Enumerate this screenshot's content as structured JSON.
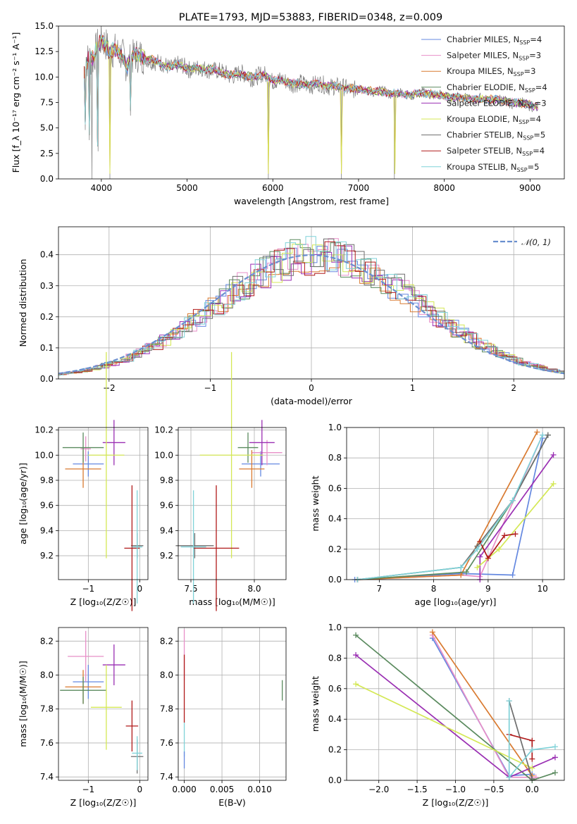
{
  "colors": {
    "chabrier_miles": "#6488e0",
    "salpeter_miles": "#e88fc8",
    "kroupa_miles": "#d97a30",
    "chabrier_elodie": "#5a8a5e",
    "salpeter_elodie": "#9a2fb3",
    "kroupa_elodie": "#d4e855",
    "chabrier_stelib": "#6e6e6e",
    "salpeter_stelib": "#b01a1a",
    "kroupa_stelib": "#7fd2d8",
    "gaussian": "#6a8fcf"
  },
  "chart_data": [
    {
      "id": "spectrum",
      "type": "line",
      "title": "PLATE=1793, MJD=53883, FIBERID=0348, z=0.009",
      "xlabel": "wavelength [Angstrom, rest frame]",
      "ylabel": "Flux [f_λ 10⁻¹⁷ erg cm⁻² s⁻¹ A⁻¹]",
      "xlim": [
        3500,
        9400
      ],
      "ylim": [
        0,
        15
      ],
      "xticks": [
        4000,
        5000,
        6000,
        7000,
        8000,
        9000
      ],
      "yticks": [
        0.0,
        2.5,
        5.0,
        7.5,
        10.0,
        12.5,
        15.0
      ],
      "legend_position": "top-right",
      "legend": [
        {
          "label": "Chabrier MILES, N",
          "sub": "SSP",
          "tail": "=4",
          "color_key": "chabrier_miles"
        },
        {
          "label": "Salpeter MILES, N",
          "sub": "SSP",
          "tail": "=3",
          "color_key": "salpeter_miles"
        },
        {
          "label": "Kroupa MILES, N",
          "sub": "SSP",
          "tail": "=3",
          "color_key": "kroupa_miles"
        },
        {
          "label": "Chabrier ELODIE, N",
          "sub": "SSP",
          "tail": "=4",
          "color_key": "chabrier_elodie"
        },
        {
          "label": "Salpeter ELODIE, N",
          "sub": "SSP",
          "tail": "=3",
          "color_key": "salpeter_elodie"
        },
        {
          "label": "Kroupa ELODIE, N",
          "sub": "SSP",
          "tail": "=4",
          "color_key": "kroupa_elodie"
        },
        {
          "label": "Chabrier STELIB, N",
          "sub": "SSP",
          "tail": "=5",
          "color_key": "chabrier_stelib"
        },
        {
          "label": "Salpeter STELIB, N",
          "sub": "SSP",
          "tail": "=4",
          "color_key": "salpeter_stelib"
        },
        {
          "label": "Kroupa STELIB, N",
          "sub": "SSP",
          "tail": "=5",
          "color_key": "kroupa_stelib"
        }
      ],
      "data_series": {
        "x": [
          3800,
          3850,
          3900,
          3950,
          4000,
          4050,
          4100,
          4150,
          4200,
          4250,
          4300,
          4350,
          4400,
          4450,
          4500,
          4600,
          4700,
          4800,
          4900,
          5000,
          5100,
          5200,
          5300,
          5400,
          5500,
          5600,
          5700,
          5800,
          5900,
          6000,
          6100,
          6200,
          6300,
          6400,
          6500,
          6600,
          6700,
          6800,
          6900,
          7000,
          7200,
          7400,
          7600,
          7800,
          8000,
          8200,
          8400,
          8600,
          8800,
          9000,
          9100
        ],
        "y": [
          10.5,
          12.0,
          11.8,
          13.0,
          13.5,
          13.2,
          12.5,
          12.8,
          12.3,
          11.9,
          11.0,
          12.0,
          12.2,
          12.0,
          11.8,
          11.7,
          11.2,
          11.0,
          11.2,
          10.8,
          10.9,
          10.7,
          10.8,
          10.4,
          10.2,
          10.3,
          10.1,
          10.0,
          10.2,
          9.7,
          9.6,
          9.5,
          9.3,
          9.2,
          9.4,
          9.1,
          9.2,
          8.9,
          8.9,
          8.8,
          8.6,
          8.4,
          8.3,
          8.4,
          8.1,
          8.0,
          7.8,
          7.8,
          7.5,
          7.3,
          7.0
        ]
      },
      "absorption_dips": [
        {
          "x": 3810,
          "y": 4.8
        },
        {
          "x": 3860,
          "y": 3.8
        },
        {
          "x": 3890,
          "y": 0.0
        },
        {
          "x": 3960,
          "y": 2.7
        },
        {
          "x": 4102,
          "y": 0.0
        },
        {
          "x": 4340,
          "y": 6.2
        },
        {
          "x": 5950,
          "y": 0.0
        },
        {
          "x": 6800,
          "y": 0.0
        },
        {
          "x": 7420,
          "y": 0.0
        }
      ]
    },
    {
      "id": "residuals",
      "type": "line",
      "xlabel": "(data-model)/error",
      "ylabel": "Normed distribution",
      "xlim": [
        -2.5,
        2.5
      ],
      "ylim": [
        0,
        0.49
      ],
      "xticks": [
        -2,
        -1,
        0,
        1,
        2
      ],
      "yticks": [
        0.0,
        0.1,
        0.2,
        0.3,
        0.4
      ],
      "legend_position": "top-right",
      "legend": [
        {
          "label": "𝒩(0, 1)",
          "color_key": "gaussian"
        }
      ],
      "gaussian": {
        "mean": 0,
        "sigma": 1
      }
    },
    {
      "id": "age_vs_z",
      "type": "scatter",
      "xlabel": "Z [log₁₀(Z/Z☉)]",
      "ylabel": "age  [log₁₀(age/yr)]",
      "xlim": [
        -1.58,
        0.16
      ],
      "ylim": [
        9.01,
        10.22
      ],
      "xticks": [
        -1,
        0
      ],
      "yticks": [
        9.2,
        9.4,
        9.6,
        9.8,
        10.0,
        10.2
      ],
      "points": [
        {
          "color_key": "chabrier_miles",
          "x": -1.0,
          "xerr": 0.3,
          "y": 9.93,
          "yerr": 0.1
        },
        {
          "color_key": "salpeter_miles",
          "x": -1.05,
          "xerr": 0.1,
          "y": 10.05,
          "yerr": 0.1
        },
        {
          "color_key": "kroupa_miles",
          "x": -1.1,
          "xerr": 0.35,
          "y": 9.89,
          "yerr": 0.15
        },
        {
          "color_key": "chabrier_elodie",
          "x": -1.1,
          "xerr": 0.4,
          "y": 10.06,
          "yerr": 0.12
        },
        {
          "color_key": "salpeter_elodie",
          "x": -0.5,
          "xerr": 0.22,
          "y": 10.1,
          "yerr": 0.18
        },
        {
          "color_key": "kroupa_elodie",
          "x": -0.65,
          "xerr": 0.35,
          "y": 10.0,
          "yerr": 0.82
        },
        {
          "color_key": "chabrier_stelib",
          "x": -0.05,
          "xerr": 0.12,
          "y": 9.28,
          "yerr": 0.1
        },
        {
          "color_key": "salpeter_stelib",
          "x": -0.15,
          "xerr": 0.15,
          "y": 9.26,
          "yerr": 0.5
        },
        {
          "color_key": "kroupa_stelib",
          "x": -0.05,
          "xerr": 0.1,
          "y": 9.27,
          "yerr": 0.45
        }
      ]
    },
    {
      "id": "age_vs_mass",
      "type": "scatter",
      "xlabel": "mass [log₁₀(M/M☉)]",
      "xlim": [
        7.4,
        8.25
      ],
      "ylim": [
        9.01,
        10.22
      ],
      "xticks": [
        7.5,
        8.0
      ],
      "yticks": [
        9.2,
        9.4,
        9.6,
        9.8,
        10.0,
        10.2
      ],
      "points": [
        {
          "color_key": "chabrier_miles",
          "x": 8.05,
          "xerr": 0.15,
          "y": 9.93,
          "yerr": 0.1
        },
        {
          "color_key": "salpeter_miles",
          "x": 8.1,
          "xerr": 0.12,
          "y": 10.02,
          "yerr": 0.1
        },
        {
          "color_key": "kroupa_miles",
          "x": 7.98,
          "xerr": 0.1,
          "y": 9.89,
          "yerr": 0.15
        },
        {
          "color_key": "chabrier_elodie",
          "x": 7.95,
          "xerr": 0.08,
          "y": 10.06,
          "yerr": 0.12
        },
        {
          "color_key": "salpeter_elodie",
          "x": 8.06,
          "xerr": 0.1,
          "y": 10.1,
          "yerr": 0.18
        },
        {
          "color_key": "kroupa_elodie",
          "x": 7.82,
          "xerr": 0.25,
          "y": 10.0,
          "yerr": 0.82
        },
        {
          "color_key": "chabrier_stelib",
          "x": 7.53,
          "xerr": 0.15,
          "y": 9.28,
          "yerr": 0.1
        },
        {
          "color_key": "salpeter_stelib",
          "x": 7.7,
          "xerr": 0.18,
          "y": 9.26,
          "yerr": 0.5
        },
        {
          "color_key": "kroupa_stelib",
          "x": 7.52,
          "xerr": 0.1,
          "y": 9.27,
          "yerr": 0.45
        }
      ]
    },
    {
      "id": "weight_vs_age",
      "type": "line",
      "xlabel": "age  [log₁₀(age/yr)]",
      "ylabel": "mass weight",
      "xlim": [
        6.4,
        10.4
      ],
      "ylim": [
        0,
        1.0
      ],
      "xticks": [
        7,
        8,
        9,
        10
      ],
      "yticks": [
        0.0,
        0.2,
        0.4,
        0.6,
        0.8,
        1.0
      ],
      "series": [
        {
          "color_key": "chabrier_miles",
          "x": [
            6.55,
            8.5,
            9.45,
            10.0
          ],
          "y": [
            0.0,
            0.04,
            0.03,
            0.93
          ]
        },
        {
          "color_key": "salpeter_miles",
          "x": [
            6.6,
            8.5,
            8.85,
            10.0
          ],
          "y": [
            0.0,
            0.03,
            0.02,
            0.95
          ]
        },
        {
          "color_key": "kroupa_miles",
          "x": [
            6.6,
            8.5,
            9.9
          ],
          "y": [
            0.0,
            0.03,
            0.97
          ]
        },
        {
          "color_key": "chabrier_elodie",
          "x": [
            6.6,
            8.6,
            9.45,
            10.1
          ],
          "y": [
            0.0,
            0.05,
            0.52,
            0.95
          ]
        },
        {
          "color_key": "salpeter_elodie",
          "x": [
            8.85,
            8.85,
            10.2
          ],
          "y": [
            0.0,
            0.15,
            0.82
          ]
        },
        {
          "color_key": "kroupa_elodie",
          "x": [
            8.8,
            9.2,
            10.2
          ],
          "y": [
            0.08,
            0.2,
            0.63
          ]
        },
        {
          "color_key": "chabrier_stelib",
          "x": [
            6.6,
            8.5,
            8.8,
            9.45,
            10.1
          ],
          "y": [
            0.0,
            0.08,
            0.22,
            0.52,
            0.95
          ]
        },
        {
          "color_key": "salpeter_stelib",
          "x": [
            8.85,
            9.0,
            9.3,
            9.5
          ],
          "y": [
            0.25,
            0.14,
            0.29,
            0.3
          ]
        },
        {
          "color_key": "kroupa_stelib",
          "x": [
            6.6,
            8.5,
            8.8,
            9.45,
            10.0
          ],
          "y": [
            0.0,
            0.08,
            0.2,
            0.52,
            0.95
          ]
        }
      ]
    },
    {
      "id": "mass_vs_z",
      "type": "scatter",
      "xlabel": "Z [log₁₀(Z/Z☉)]",
      "ylabel": "mass [log₁₀(M/M☉)]",
      "xlim": [
        -1.58,
        0.16
      ],
      "ylim": [
        7.38,
        8.28
      ],
      "xticks": [
        -1,
        0
      ],
      "yticks": [
        7.4,
        7.6,
        7.8,
        8.0,
        8.2
      ],
      "points": [
        {
          "color_key": "chabrier_miles",
          "x": -1.0,
          "xerr": 0.3,
          "y": 7.96,
          "yerr": 0.1
        },
        {
          "color_key": "salpeter_miles",
          "x": -1.05,
          "xerr": 0.35,
          "y": 8.11,
          "yerr": 0.15
        },
        {
          "color_key": "kroupa_miles",
          "x": -1.1,
          "xerr": 0.35,
          "y": 7.93,
          "yerr": 0.1
        },
        {
          "color_key": "chabrier_elodie",
          "x": -1.1,
          "xerr": 0.45,
          "y": 7.91,
          "yerr": 0.08
        },
        {
          "color_key": "salpeter_elodie",
          "x": -0.5,
          "xerr": 0.22,
          "y": 8.06,
          "yerr": 0.12
        },
        {
          "color_key": "kroupa_elodie",
          "x": -0.65,
          "xerr": 0.3,
          "y": 7.81,
          "yerr": 0.25
        },
        {
          "color_key": "chabrier_stelib",
          "x": -0.05,
          "xerr": 0.12,
          "y": 7.52,
          "yerr": 0.1
        },
        {
          "color_key": "salpeter_stelib",
          "x": -0.15,
          "xerr": 0.12,
          "y": 7.7,
          "yerr": 0.15
        },
        {
          "color_key": "kroupa_stelib",
          "x": -0.05,
          "xerr": 0.1,
          "y": 7.54,
          "yerr": 0.1
        }
      ]
    },
    {
      "id": "mass_vs_ebv",
      "type": "scatter",
      "xlabel": "E(B-V)",
      "xlim": [
        -0.0008,
        0.0135
      ],
      "ylim": [
        7.38,
        8.28
      ],
      "xticks": [
        0.0,
        0.005,
        0.01
      ],
      "xtick_labels": [
        "0.000",
        "0.005",
        "0.010"
      ],
      "yticks": [
        7.4,
        7.6,
        7.8,
        8.0,
        8.2
      ],
      "points": [
        {
          "color_key": "salpeter_miles",
          "x": 0.0,
          "y": 8.12,
          "yerr": 0.15
        },
        {
          "color_key": "salpeter_stelib",
          "x": 0.0,
          "y": 7.92,
          "yerr": 0.2
        },
        {
          "color_key": "kroupa_stelib",
          "x": 0.0,
          "y": 7.62,
          "yerr": 0.1
        },
        {
          "color_key": "chabrier_miles",
          "x": 0.0,
          "y": 7.5,
          "yerr": 0.05
        },
        {
          "color_key": "chabrier_elodie",
          "x": 0.013,
          "y": 7.91,
          "yerr": 0.06
        }
      ]
    },
    {
      "id": "weight_vs_z",
      "type": "line",
      "xlabel": "Z [log₁₀(Z/Z☉)]",
      "ylabel": "mass weight",
      "xlim": [
        -2.42,
        0.42
      ],
      "ylim": [
        0,
        1.0
      ],
      "xticks": [
        -2.0,
        -1.5,
        -1.0,
        -0.5,
        0.0
      ],
      "yticks": [
        0.0,
        0.2,
        0.4,
        0.6,
        0.8,
        1.0
      ],
      "series": [
        {
          "color_key": "chabrier_miles",
          "x": [
            -1.3,
            -0.3,
            0.0
          ],
          "y": [
            0.93,
            0.03,
            0.04
          ]
        },
        {
          "color_key": "salpeter_miles",
          "x": [
            -1.3,
            -0.3,
            0.05
          ],
          "y": [
            0.95,
            0.02,
            0.02
          ]
        },
        {
          "color_key": "kroupa_miles",
          "x": [
            -1.3,
            0.0
          ],
          "y": [
            0.97,
            0.03
          ]
        },
        {
          "color_key": "chabrier_elodie",
          "x": [
            -2.3,
            0.0,
            0.3
          ],
          "y": [
            0.95,
            0.0,
            0.05
          ]
        },
        {
          "color_key": "salpeter_elodie",
          "x": [
            -2.3,
            -0.3,
            0.3
          ],
          "y": [
            0.82,
            0.02,
            0.15
          ]
        },
        {
          "color_key": "kroupa_elodie",
          "x": [
            -2.3,
            0.0
          ],
          "y": [
            0.63,
            0.08
          ]
        },
        {
          "color_key": "chabrier_stelib",
          "x": [
            -0.3,
            0.0
          ],
          "y": [
            0.52,
            0.01
          ]
        },
        {
          "color_key": "salpeter_stelib",
          "x": [
            -0.3,
            0.0,
            0.0
          ],
          "y": [
            0.3,
            0.26,
            0.14
          ]
        },
        {
          "color_key": "kroupa_stelib",
          "x": [
            -0.3,
            -0.3,
            0.0,
            0.3
          ],
          "y": [
            0.52,
            0.02,
            0.2,
            0.22
          ]
        }
      ]
    }
  ]
}
